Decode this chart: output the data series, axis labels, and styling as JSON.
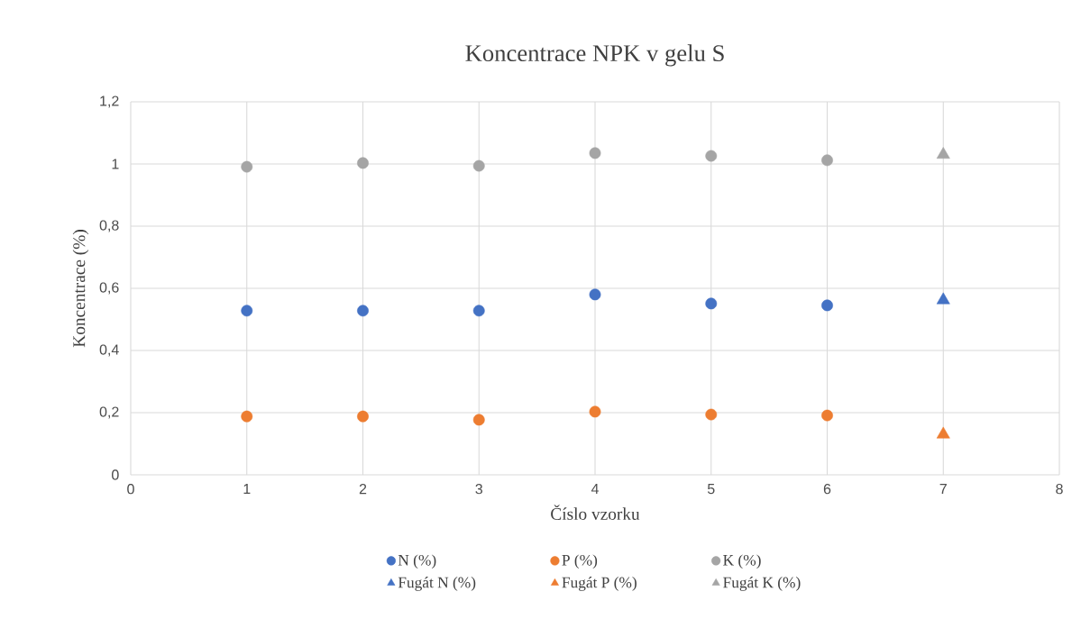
{
  "chart_data": {
    "type": "scatter",
    "title": "Koncentrace NPK v gelu S",
    "xlabel": "Číslo vzorku",
    "ylabel": "Koncentrace (%)",
    "series": [
      {
        "name": "N (%)",
        "color": "#4472c4",
        "marker": "circle",
        "x": [
          1,
          2,
          3,
          4,
          5,
          6
        ],
        "values": [
          0.528,
          0.528,
          0.528,
          0.58,
          0.551,
          0.545
        ]
      },
      {
        "name": "P (%)",
        "color": "#ed7d31",
        "marker": "circle",
        "x": [
          1,
          2,
          3,
          4,
          5,
          6
        ],
        "values": [
          0.188,
          0.188,
          0.177,
          0.203,
          0.194,
          0.191
        ]
      },
      {
        "name": "K (%)",
        "color": "#a5a5a5",
        "marker": "circle",
        "x": [
          1,
          2,
          3,
          4,
          5,
          6
        ],
        "values": [
          0.991,
          1.003,
          0.994,
          1.035,
          1.026,
          1.012
        ]
      },
      {
        "name": "Fugát N (%)",
        "color": "#4472c4",
        "marker": "triangle",
        "x": [
          7
        ],
        "values": [
          0.562
        ]
      },
      {
        "name": "Fugát P (%)",
        "color": "#ed7d31",
        "marker": "triangle",
        "x": [
          7
        ],
        "values": [
          0.13
        ]
      },
      {
        "name": "Fugát K (%)",
        "color": "#a5a5a5",
        "marker": "triangle",
        "x": [
          7
        ],
        "values": [
          1.03
        ]
      }
    ],
    "xlim": [
      0,
      8
    ],
    "xticks": [
      0,
      1,
      2,
      3,
      4,
      5,
      6,
      7,
      8
    ],
    "ylim": [
      0,
      1.2
    ],
    "yticks": [
      0,
      {
        "value": 0.2,
        "label": "0,2"
      },
      {
        "value": 0.4,
        "label": "0,4"
      },
      {
        "value": 0.6,
        "label": "0,6"
      },
      {
        "value": 0.8,
        "label": "0,8"
      },
      1,
      {
        "value": 1.2,
        "label": "1,2"
      }
    ],
    "grid": true,
    "legend": "bottom"
  }
}
